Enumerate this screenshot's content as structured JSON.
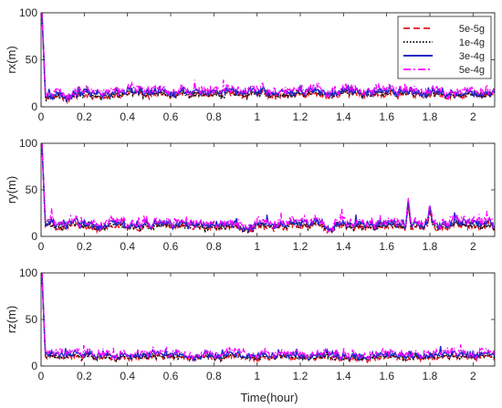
{
  "colors": {
    "series": [
      "#e41a1c",
      "#000000",
      "#1f28c8",
      "#ff00ff"
    ],
    "axis": "#262626"
  },
  "chart_data": [
    {
      "type": "line",
      "ylabel": "rx(m)",
      "xlabel": "",
      "xlim": [
        0,
        2.1
      ],
      "ylim": [
        0,
        100
      ],
      "xticks": [
        "0",
        "0.2",
        "0.4",
        "0.6",
        "0.8",
        "1",
        "1.2",
        "1.4",
        "1.6",
        "1.8",
        "2"
      ],
      "yticks": [
        "0",
        "50",
        "100"
      ],
      "grid": false,
      "legend": "top-right",
      "initial_peak": 100,
      "series": [
        {
          "name": "5e-5g",
          "base": 12,
          "amp": 4,
          "line_style": "dashed"
        },
        {
          "name": "1e-4g",
          "base": 13,
          "amp": 4,
          "line_style": "dotted"
        },
        {
          "name": "3e-4g",
          "base": 15,
          "amp": 5,
          "line_style": "solid"
        },
        {
          "name": "5e-4g",
          "base": 17,
          "amp": 6,
          "line_style": "dashdot"
        }
      ]
    },
    {
      "type": "line",
      "ylabel": "ry(m)",
      "xlabel": "",
      "xlim": [
        0,
        2.1
      ],
      "ylim": [
        0,
        100
      ],
      "xticks": [
        "0",
        "0.2",
        "0.4",
        "0.6",
        "0.8",
        "1",
        "1.2",
        "1.4",
        "1.6",
        "1.8",
        "2"
      ],
      "yticks": [
        "0",
        "50",
        "100"
      ],
      "grid": false,
      "initial_peak": 100,
      "series": [
        {
          "name": "5e-5g",
          "base": 10,
          "amp": 4,
          "line_style": "dashed"
        },
        {
          "name": "1e-4g",
          "base": 11,
          "amp": 4,
          "line_style": "dotted"
        },
        {
          "name": "3e-4g",
          "base": 13,
          "amp": 5,
          "line_style": "solid"
        },
        {
          "name": "5e-4g",
          "base": 15,
          "amp": 6,
          "line_style": "dashdot"
        }
      ],
      "notable_peaks": [
        {
          "x": 1.7,
          "y": 42
        },
        {
          "x": 1.8,
          "y": 35
        }
      ]
    },
    {
      "type": "line",
      "ylabel": "rz(m)",
      "xlabel": "Time(hour)",
      "xlim": [
        0,
        2.1
      ],
      "ylim": [
        0,
        100
      ],
      "xticks": [
        "0",
        "0.2",
        "0.4",
        "0.6",
        "0.8",
        "1",
        "1.2",
        "1.4",
        "1.6",
        "1.8",
        "2"
      ],
      "yticks": [
        "0",
        "50",
        "100"
      ],
      "grid": false,
      "initial_peak": 100,
      "series": [
        {
          "name": "5e-5g",
          "base": 9,
          "amp": 3,
          "line_style": "dashed"
        },
        {
          "name": "1e-4g",
          "base": 10,
          "amp": 3,
          "line_style": "dotted"
        },
        {
          "name": "3e-4g",
          "base": 12,
          "amp": 4,
          "line_style": "solid"
        },
        {
          "name": "5e-4g",
          "base": 14,
          "amp": 5,
          "line_style": "dashdot"
        }
      ]
    }
  ]
}
